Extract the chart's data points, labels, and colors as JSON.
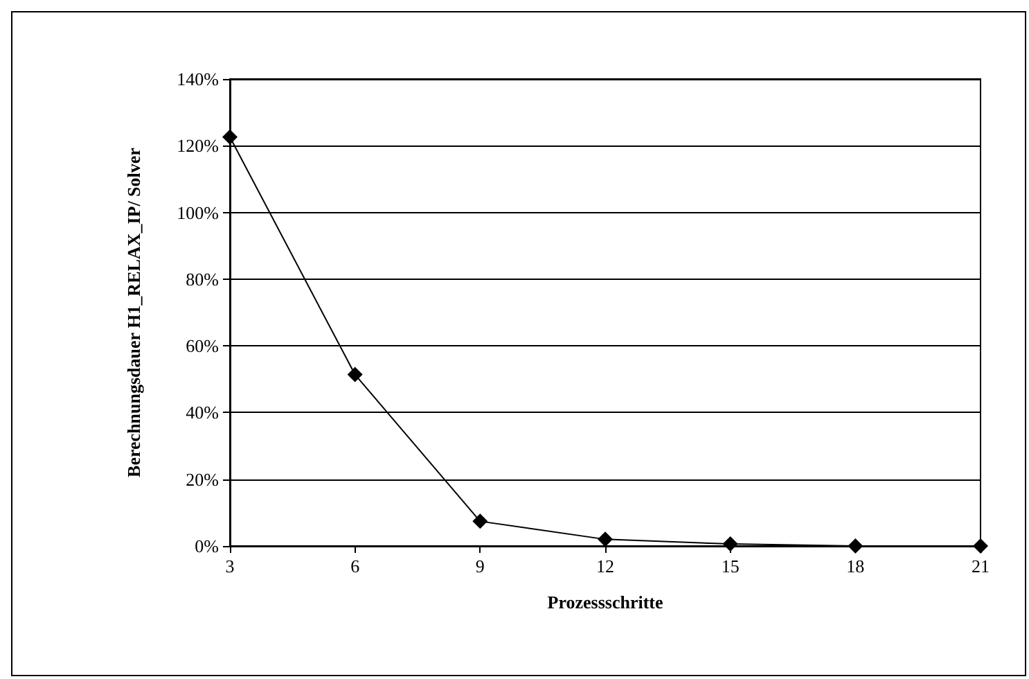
{
  "chart_data": {
    "type": "line",
    "xlabel": "Prozessschritte",
    "ylabel": "Berechnungsdauer H1_RELAX_IP/ Solver",
    "categories": [
      "3",
      "6",
      "9",
      "12",
      "15",
      "18",
      "21"
    ],
    "series": [
      {
        "color": "#000000",
        "values": [
          122.6,
          51.4,
          7.4,
          2,
          0.6,
          0,
          0
        ]
      }
    ],
    "ylim": [
      0,
      140
    ],
    "yticks": [
      {
        "value": 0,
        "label": "0%"
      },
      {
        "value": 20,
        "label": "20%"
      },
      {
        "value": 40,
        "label": "40%"
      },
      {
        "value": 60,
        "label": "60%"
      },
      {
        "value": 80,
        "label": "80%"
      },
      {
        "value": 100,
        "label": "100%"
      },
      {
        "value": 120,
        "label": "120%"
      },
      {
        "value": 140,
        "label": "140%"
      }
    ],
    "grid": "y",
    "marker": "diamond",
    "line_style": "solid"
  }
}
